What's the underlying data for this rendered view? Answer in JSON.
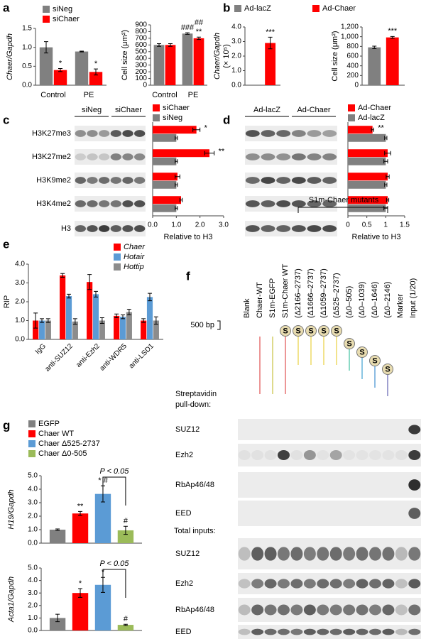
{
  "panel_labels": [
    "a",
    "b",
    "c",
    "d",
    "e",
    "f",
    "g"
  ],
  "chart_data": [
    {
      "type": "bar",
      "ylabel": "Chaer/Gapdh",
      "categories": [
        "Control",
        "PE"
      ],
      "series": [
        {
          "name": "siNeg",
          "color": "#808080",
          "values": [
            1.0,
            0.89
          ],
          "errors": [
            0.15,
            0.01
          ]
        },
        {
          "name": "siChaer",
          "color": "#ff0000",
          "values": [
            0.4,
            0.35
          ],
          "errors": [
            0.04,
            0.08
          ],
          "significance": [
            "*",
            "*"
          ]
        }
      ],
      "ylim": [
        0,
        1.5
      ],
      "yticks": [
        {
          "value": 0,
          "label": "0.0"
        },
        0.5,
        {
          "value": 1,
          "label": "1.0"
        },
        1.5
      ]
    },
    {
      "type": "bar",
      "ylabel": "Cell size (μm²)",
      "categories": [
        "Control",
        "PE"
      ],
      "series": [
        {
          "color": "#808080",
          "values": [
            600,
            770
          ],
          "errors": [
            20,
            12
          ],
          "significance": [
            null,
            "###"
          ]
        },
        {
          "color": "#ff0000",
          "values": [
            600,
            700
          ],
          "errors": [
            20,
            18
          ],
          "significance": [
            null,
            [
              "**",
              "##"
            ]
          ]
        }
      ],
      "ylim": [
        0,
        900
      ],
      "yticks": [
        0,
        100,
        200,
        300,
        400,
        500,
        600,
        700,
        800,
        900
      ]
    },
    {
      "type": "bar",
      "ylabel": [
        "Chaer/Gapdh",
        "(× 10⁵)"
      ],
      "series": [
        {
          "name": "Ad-lacZ",
          "color": "#808080",
          "values": [
            0
          ]
        },
        {
          "name": "Ad-Chaer",
          "color": "#ff0000",
          "values": [
            2.9
          ],
          "errors": [
            0.4
          ],
          "significance": [
            "***"
          ]
        }
      ],
      "ylim": [
        0,
        4
      ],
      "yticks": [
        {
          "value": 0,
          "label": "0.0"
        },
        {
          "value": 1,
          "label": "1.0"
        },
        {
          "value": 2,
          "label": "2.0"
        },
        {
          "value": 3,
          "label": "3.0"
        },
        {
          "value": 4,
          "label": "4.0"
        }
      ]
    },
    {
      "type": "bar",
      "ylabel": "Cell size (μm²)",
      "series": [
        {
          "color": "#808080",
          "values": [
            780
          ],
          "errors": [
            25
          ]
        },
        {
          "color": "#ff0000",
          "values": [
            985
          ],
          "errors": [
            20
          ],
          "significance": [
            "***"
          ]
        }
      ],
      "ylim": [
        0,
        1200
      ],
      "yticks": [
        0,
        200,
        400,
        600,
        800,
        {
          "value": 1000,
          "label": "1,000"
        },
        {
          "value": 1200,
          "label": "1,200"
        }
      ]
    },
    {
      "type": "bar",
      "orientation": "horizontal",
      "xlabel": "Relative to H3",
      "series": [
        {
          "name": "siChaer",
          "color": "#ff0000",
          "values": [
            1.85,
            2.4,
            1.05,
            1.2
          ],
          "errors": [
            0.15,
            0.2,
            0.1,
            0.05
          ],
          "significance": [
            "*",
            "**",
            null,
            null
          ]
        },
        {
          "name": "siNeg",
          "color": "#808080",
          "values": [
            1,
            1,
            1,
            1
          ],
          "errors": [
            0.05,
            0.05,
            0.05,
            0.05
          ]
        }
      ],
      "xlim": [
        0,
        3
      ],
      "xticks": [
        {
          "value": 0,
          "label": "0.0"
        },
        {
          "value": 1,
          "label": "1.0"
        },
        {
          "value": 2,
          "label": "2.0"
        },
        {
          "value": 3,
          "label": "3.0"
        }
      ]
    },
    {
      "type": "bar",
      "orientation": "horizontal",
      "xlabel": "Relative to H3",
      "series": [
        {
          "name": "Ad-Chaer",
          "color": "#ff0000",
          "values": [
            0.65,
            1.05,
            1.05,
            1.05
          ],
          "errors": [
            0.03,
            0.08,
            0.04,
            0.03
          ],
          "significance": [
            "**",
            null,
            null,
            null
          ]
        },
        {
          "name": "Ad-lacZ",
          "color": "#808080",
          "values": [
            1,
            1,
            1,
            1
          ],
          "errors": [
            0.03,
            0.05,
            0.03,
            0.05
          ]
        }
      ],
      "xlim": [
        0,
        1.5
      ],
      "xticks": [
        0,
        0.5,
        1,
        1.5
      ]
    },
    {
      "type": "bar",
      "ylabel": "RIP",
      "categories": [
        "IgG",
        "anti-SUZ12",
        "anti-Ezh2",
        "anti-WDR5",
        "anti-LSD1"
      ],
      "series": [
        {
          "name": "Chaer",
          "color": "#ff0000",
          "values": [
            1.0,
            3.4,
            3.05,
            1.25,
            1.0
          ],
          "errors": [
            0.4,
            0.1,
            0.4,
            0.1,
            0.1
          ]
        },
        {
          "name": "Hotair",
          "color": "#5b9bd5",
          "values": [
            1.0,
            2.3,
            2.4,
            1.2,
            2.25
          ],
          "errors": [
            0.1,
            0.1,
            0.15,
            0.1,
            0.2
          ]
        },
        {
          "name": "Hottip",
          "color": "#8c8c8c",
          "values": [
            1.0,
            0.95,
            1.0,
            1.45,
            1.0
          ],
          "errors": [
            0.1,
            0.15,
            0.15,
            0.15,
            0.2
          ]
        }
      ],
      "ylim": [
        0,
        4
      ],
      "yticks": [
        {
          "value": 0,
          "label": "0.0"
        },
        {
          "value": 1,
          "label": "1.0"
        },
        {
          "value": 2,
          "label": "2.0"
        },
        {
          "value": 3,
          "label": "3.0"
        },
        {
          "value": 4,
          "label": "4.0"
        }
      ]
    },
    {
      "type": "bar",
      "ylabel": "H19/Gapdh",
      "annotation": "P < 0.05",
      "series": [
        {
          "name": "EGFP",
          "color": "#808080",
          "values": [
            1.0
          ],
          "errors": [
            0.05
          ]
        },
        {
          "name": "Chaer WT",
          "color": "#ff0000",
          "values": [
            2.2
          ],
          "errors": [
            0.15
          ],
          "significance": [
            "**"
          ]
        },
        {
          "name": "Chaer Δ525-2737",
          "color": "#5b9bd5",
          "values": [
            3.65
          ],
          "errors": [
            0.6
          ],
          "significance": [
            "* #"
          ]
        },
        {
          "name": "Chaer Δ0-505",
          "color": "#9bbb59",
          "values": [
            0.95
          ],
          "errors": [
            0.3
          ],
          "significance": [
            "#"
          ]
        }
      ],
      "ylim": [
        0,
        5
      ],
      "yticks": [
        {
          "value": 0,
          "label": "0.0"
        },
        {
          "value": 1,
          "label": "1.0"
        },
        {
          "value": 2,
          "label": "2.0"
        },
        {
          "value": 3,
          "label": "3.0"
        },
        {
          "value": 4,
          "label": "4.0"
        },
        {
          "value": 5,
          "label": "5.0"
        }
      ]
    },
    {
      "type": "bar",
      "ylabel": "Acta1/Gapdh",
      "annotation": "P < 0.05",
      "series": [
        {
          "color": "#808080",
          "values": [
            1.0
          ],
          "errors": [
            0.3
          ]
        },
        {
          "color": "#ff0000",
          "values": [
            3.0
          ],
          "errors": [
            0.35
          ],
          "significance": [
            "*"
          ]
        },
        {
          "color": "#5b9bd5",
          "values": [
            3.65
          ],
          "errors": [
            0.6
          ],
          "significance": [
            "*"
          ]
        },
        {
          "color": "#9bbb59",
          "values": [
            0.45
          ],
          "errors": [
            0.05
          ],
          "significance": [
            "#"
          ]
        }
      ],
      "ylim": [
        0,
        5
      ],
      "yticks": [
        {
          "value": 0,
          "label": "0.0"
        },
        {
          "value": 1,
          "label": "1.0"
        },
        {
          "value": 2,
          "label": "2.0"
        },
        {
          "value": 3,
          "label": "3.0"
        },
        {
          "value": 4,
          "label": "4.0"
        },
        {
          "value": 5,
          "label": "5.0"
        }
      ]
    }
  ],
  "blots": {
    "c": {
      "groups": [
        "siNeg",
        "siChaer"
      ],
      "rows": [
        "H3K27me3",
        "H3K27me2",
        "H3K9me2",
        "H3K4me2",
        "H3"
      ]
    },
    "d": {
      "groups": [
        "Ad-lacZ",
        "Ad-Chaer"
      ]
    },
    "f": {
      "header": "S1m-Chaer mutants",
      "lanes": [
        "Blank",
        "Chaer-WT",
        "S1m-EGFP",
        "S1m-Chaer WT",
        "(Δ2166–2737)",
        "(Δ1666–2737)",
        "(Δ1059–2737)",
        "(Δ525–2737)",
        "(Δ0–505)",
        "(Δ0–1039)",
        "(Δ0–1646)",
        "(Δ0–2146)",
        "Marker",
        "Input (1/20)"
      ],
      "size_marker": "500 bp",
      "pulldown_label": [
        "Streptavidin",
        "pull-down:"
      ],
      "pulldown_rows": [
        "SUZ12",
        "Ezh2",
        "RbAp46/48",
        "EED"
      ],
      "inputs_label": "Total inputs:",
      "input_rows": [
        "SUZ12",
        "Ezh2",
        "RbAp46/48",
        "EED"
      ]
    }
  }
}
